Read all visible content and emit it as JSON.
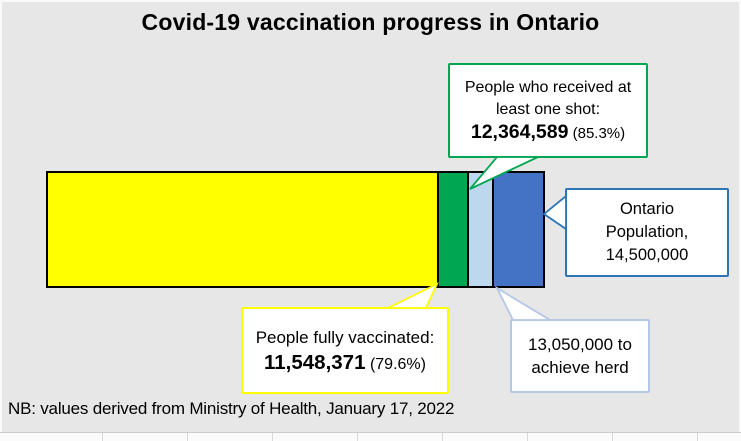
{
  "title": "Covid-19 vaccination progress in Ontario",
  "note": "NB: values derived from Ministry of Health, January 17, 2022",
  "colors": {
    "background": "#e7e7e7",
    "yellow": "#FFFF00",
    "green": "#00A651",
    "light_blue": "#BDD7EE",
    "dark_blue": "#4472C4",
    "blue_border": "#2E75B6",
    "herd_border": "#B4C7E7",
    "bar_outline": "#000000"
  },
  "callouts": {
    "one_shot": {
      "line1": "People who received at",
      "line2": "least one shot:",
      "value": "12,364,589",
      "percent": " (85.3%)",
      "border_color": "#00A651"
    },
    "population": {
      "line1": "Ontario",
      "line2": "Population,",
      "line3": "14,500,000",
      "border_color": "#2E75B6"
    },
    "fully_vaccinated": {
      "line1": "People fully vaccinated:",
      "value": "11,548,371",
      "percent": " (79.6%)",
      "border_color": "#FFFF00"
    },
    "herd": {
      "line1": "13,050,000 to",
      "line2": "achieve herd",
      "border_color": "#B4C7E7"
    }
  },
  "chart_data": {
    "type": "bar",
    "subtype": "single-horizontal-stacked-proportional",
    "title": "Covid-19 vaccination progress in Ontario",
    "total_population": 14500000,
    "key_values": {
      "people_fully_vaccinated": 11548371,
      "people_fully_vaccinated_pct": "79.6%",
      "people_at_least_one_shot": 12364589,
      "people_at_least_one_shot_pct": "85.3%",
      "herd_immunity_threshold": 13050000,
      "ontario_population": 14500000
    },
    "segments": [
      {
        "label": "People fully vaccinated",
        "value": 11548371,
        "color": "#FFFF00"
      },
      {
        "label": "Additional people with at least one shot (cumulative 12,364,589 = 85.3%)",
        "value": 816218,
        "color": "#00A651"
      },
      {
        "label": "Remaining to reach herd threshold of 13,050,000",
        "value": 685411,
        "color": "#BDD7EE"
      },
      {
        "label": "Rest of Ontario population of 14,500,000",
        "value": 1450000,
        "color": "#4472C4"
      }
    ],
    "note": "NB: values derived from Ministry of Health, January 17, 2022",
    "legend": "none",
    "axes": "none (proportional widths, values shown in callout labels)"
  }
}
